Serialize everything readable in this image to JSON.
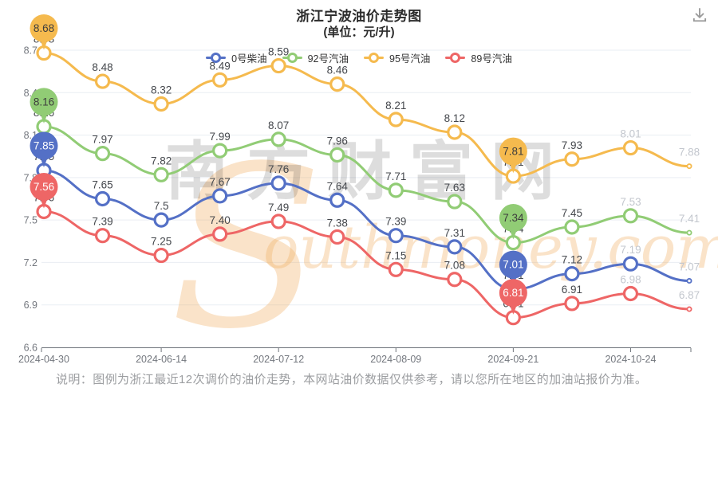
{
  "icons": {
    "download": "download-icon"
  },
  "chart_data": {
    "type": "line",
    "title": "浙江宁波油价走势图",
    "unit_label": "(单位：元/升)",
    "x_labels": [
      "2024-04-30",
      "2024-06-14",
      "2024-07-12",
      "2024-08-09",
      "2024-09-21",
      "2024-10-24"
    ],
    "x_label_point_indices": [
      0,
      2,
      4,
      6,
      8,
      10
    ],
    "n_points": 12,
    "ylim": [
      6.6,
      8.7
    ],
    "y_ticks": [
      "8.7",
      "8.4",
      "8.1",
      "7.8",
      "7.5",
      "7.2",
      "6.9",
      "6.6"
    ],
    "gray_label_from_index": 10,
    "pin_indices": [
      0,
      8
    ],
    "legend_position": "top-center",
    "grid": true,
    "series": [
      {
        "name": "0号柴油",
        "color": "#5470c6",
        "pin_text_color": "#ffffff",
        "values": [
          7.85,
          7.65,
          7.5,
          7.67,
          7.76,
          7.64,
          7.39,
          7.31,
          7.01,
          7.12,
          7.19,
          7.07
        ],
        "labels": [
          "7.85",
          "7.65",
          "7.5",
          "7.67",
          "7.76",
          "7.64",
          "7.39",
          "7.31",
          "7.01",
          "7.12",
          "7.19",
          "7.07"
        ]
      },
      {
        "name": "92号汽油",
        "color": "#91cc75",
        "pin_text_color": "#3d3d3d",
        "values": [
          8.16,
          7.97,
          7.82,
          7.99,
          8.07,
          7.96,
          7.71,
          7.63,
          7.34,
          7.45,
          7.53,
          7.41
        ],
        "labels": [
          "8.16",
          "7.97",
          "7.82",
          "7.99",
          "8.07",
          "7.96",
          "7.71",
          "7.63",
          "7.34",
          "7.45",
          "7.53",
          "7.41"
        ]
      },
      {
        "name": "95号汽油",
        "color": "#f5ba4e",
        "pin_text_color": "#3d3d3d",
        "values": [
          8.68,
          8.48,
          8.32,
          8.49,
          8.59,
          8.46,
          8.21,
          8.12,
          7.81,
          7.93,
          8.01,
          7.88
        ],
        "labels": [
          "8.68",
          "8.48",
          "8.32",
          "8.49",
          "8.59",
          "8.46",
          "8.21",
          "8.12",
          "7.81",
          "7.93",
          "8.01",
          "7.88"
        ]
      },
      {
        "name": "89号汽油",
        "color": "#ee6666",
        "pin_text_color": "#ffffff",
        "values": [
          7.56,
          7.39,
          7.25,
          7.4,
          7.49,
          7.38,
          7.15,
          7.08,
          6.81,
          6.91,
          6.98,
          6.87
        ],
        "labels": [
          "7.56",
          "7.39",
          "7.25",
          "7.40",
          "7.49",
          "7.38",
          "7.15",
          "7.08",
          "6.81",
          "6.91",
          "6.98",
          "6.87"
        ]
      }
    ],
    "watermark": {
      "cn": "南方财富网",
      "en": "Southmoney.com"
    },
    "style": {
      "grid_color": "#e9edf3",
      "axis_color": "#6e737a",
      "tick_label_color": "#73777e",
      "value_label_color": "#45484d",
      "muted_label_color": "#c3c7ce",
      "watermark_cn_opacity": "0.13",
      "watermark_en_color": "#f0ad5f"
    }
  },
  "footer": {
    "text": "说明：图例为浙江最近12次调价的油价走势，本网站油价数据仅供参考，请以您所在地区的加油站报价为准。"
  }
}
